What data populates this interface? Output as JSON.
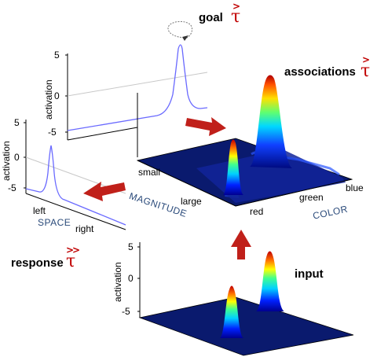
{
  "goal": {
    "label": "goal",
    "tau": "τ",
    "relation": ">"
  },
  "associations": {
    "label": "associations",
    "tau": "τ",
    "relation": ">"
  },
  "response": {
    "label": "response",
    "tau": "τ",
    "relation": ">>"
  },
  "input": {
    "label": "input"
  },
  "plots": {
    "goal": {
      "ylabel": "activation",
      "yticks": [
        "5",
        "0",
        "-5"
      ]
    },
    "response": {
      "ylabel": "activation",
      "yticks": [
        "5",
        "0",
        "-5"
      ],
      "xticks": [
        "left",
        "right"
      ],
      "xlabel": "SPACE"
    },
    "input": {
      "ylabel": "activation",
      "yticks": [
        "5",
        "0",
        "-5"
      ]
    }
  },
  "field_axes": {
    "magnitude": {
      "label": "MAGNITUDE",
      "ticks": [
        "small",
        "large"
      ]
    },
    "color": {
      "label": "COLOR",
      "ticks": [
        "red",
        "green",
        "blue"
      ]
    }
  },
  "colors": {
    "arrow": "#c0201a",
    "floor": "#0a1a6e",
    "curve": "#6a6aff",
    "tau": "#c00000"
  }
}
